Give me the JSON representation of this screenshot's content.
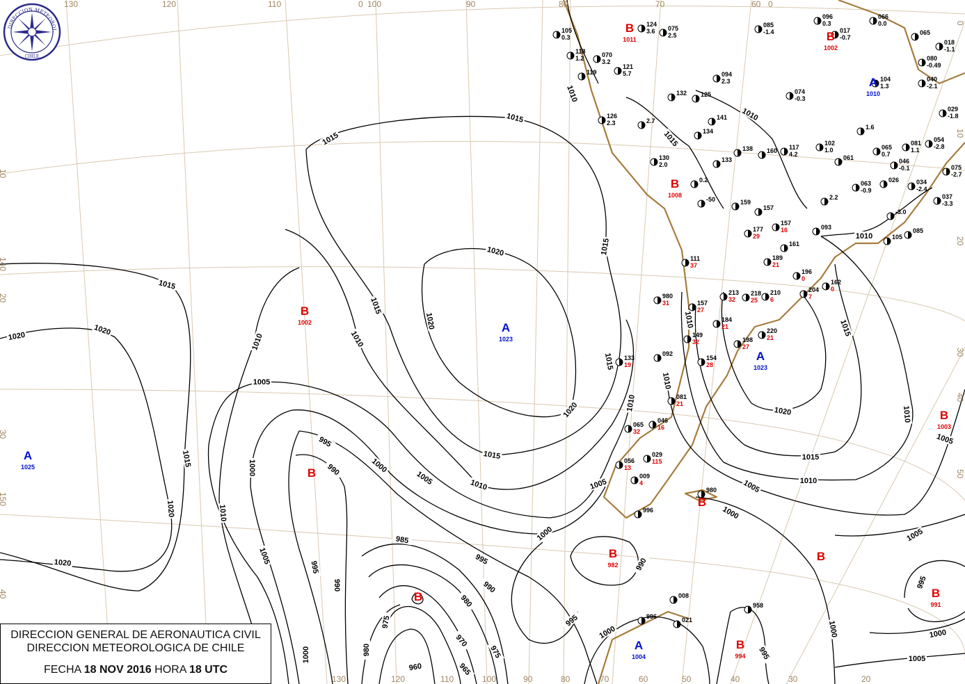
{
  "header": {
    "org_line1": "DIRECCION GENERAL DE AERONAUTICA CIVIL",
    "org_line2": "DIRECCION METEOROLOGICA DE CHILE",
    "date_label": "FECHA",
    "date_value": "18 NOV 2016",
    "time_label": "HORA",
    "time_value": "18 UTC"
  },
  "logo": {
    "text_top": "DIRECCION METEOROLOGICA",
    "text_bottom": "CHILE",
    "color": "#2a2a8a"
  },
  "colors": {
    "low": "#e00000",
    "high": "#0010d0",
    "coast": "#a67c3d",
    "grid": "#d8c8b0",
    "isobar": "#000000"
  },
  "grid_labels": {
    "top": [
      "130",
      "120",
      "110",
      "0",
      "100",
      "90",
      "80",
      "70",
      "60",
      "0"
    ],
    "left": [
      "10",
      "140",
      "20",
      "30",
      "150",
      "40"
    ],
    "bottom": [
      "130",
      "120",
      "110",
      "100",
      "90",
      "80",
      "70",
      "60",
      "50",
      "40",
      "30",
      "20"
    ],
    "right": [
      "0",
      "10",
      "20",
      "30",
      "40",
      "50"
    ]
  },
  "pressure_centers": [
    {
      "type": "B",
      "value": "1002"
    },
    {
      "type": "A",
      "value": "1023"
    },
    {
      "type": "A",
      "value": "1025"
    },
    {
      "type": "B",
      "value": ""
    },
    {
      "type": "B",
      "value": "982"
    },
    {
      "type": "B",
      "value": ""
    },
    {
      "type": "A",
      "value": "1023"
    },
    {
      "type": "B",
      "value": "1003"
    },
    {
      "type": "B",
      "value": "991"
    },
    {
      "type": "B",
      "value": "994"
    },
    {
      "type": "A",
      "value": "1004"
    },
    {
      "type": "B",
      "value": "1008"
    },
    {
      "type": "B",
      "value": "1011"
    },
    {
      "type": "B",
      "value": "1002"
    },
    {
      "type": "A",
      "value": "1010"
    },
    {
      "type": "B",
      "value": ""
    },
    {
      "type": "B",
      "value": ""
    }
  ],
  "isobar_labels": [
    "1015",
    "1015",
    "1015",
    "1015",
    "1020",
    "1020",
    "1020",
    "1015",
    "1010",
    "1010",
    "1020",
    "1020",
    "1005",
    "995",
    "990",
    "1000",
    "1005",
    "1010",
    "1015",
    "1000",
    "1015",
    "1010",
    "1020",
    "1020",
    "1005",
    "995",
    "990",
    "985",
    "995",
    "990",
    "980",
    "970",
    "975",
    "965",
    "960",
    "975",
    "980",
    "1000",
    "1000",
    "1005",
    "990",
    "995",
    "1000",
    "1010",
    "1015",
    "1010",
    "1010",
    "1020",
    "1015",
    "1010",
    "1005",
    "1000",
    "1015",
    "1010",
    "1005",
    "1005",
    "995",
    "1000",
    "1005",
    "1000",
    "995",
    "1010",
    "1015",
    "1010",
    "1010"
  ],
  "stations": [
    {
      "code": "105",
      "value": "0.3"
    },
    {
      "code": "118",
      "value": "1.2"
    },
    {
      "code": "070",
      "value": "3.2"
    },
    {
      "code": "121",
      "value": "5.7"
    },
    {
      "code": "119",
      "value": ""
    },
    {
      "code": "124",
      "value": "3.6"
    },
    {
      "code": "075",
      "value": "2.5"
    },
    {
      "code": "094",
      "value": "2.3"
    },
    {
      "code": "085",
      "value": "-1.4"
    },
    {
      "code": "096",
      "value": "0.3"
    },
    {
      "code": "017",
      "value": "-0.7"
    },
    {
      "code": "066",
      "value": "0.0"
    },
    {
      "code": "065",
      "value": ""
    },
    {
      "code": "018",
      "value": "-1.1"
    },
    {
      "code": "080",
      "value": "-0.49"
    },
    {
      "code": "040",
      "value": "-2.1"
    },
    {
      "code": "104",
      "value": "1.3"
    },
    {
      "code": "074",
      "value": "-0.3"
    },
    {
      "code": "132",
      "value": ""
    },
    {
      "code": "125",
      "value": ""
    },
    {
      "code": "141",
      "value": ""
    },
    {
      "code": "126",
      "value": "2.3"
    },
    {
      "code": "029",
      "value": "-1.8"
    },
    {
      "code": "134",
      "value": ""
    },
    {
      "code": "102",
      "value": "1.0"
    },
    {
      "code": "054",
      "value": "-2.8"
    },
    {
      "code": "081",
      "value": "1.1"
    },
    {
      "code": "065",
      "value": "0.7"
    },
    {
      "code": "117",
      "value": "4.2"
    },
    {
      "code": "138",
      "value": ""
    },
    {
      "code": "160",
      "value": ""
    },
    {
      "code": "130",
      "value": "2.0"
    },
    {
      "code": "133",
      "value": ""
    },
    {
      "code": "061",
      "value": ""
    },
    {
      "code": "046",
      "value": "-0.1"
    },
    {
      "code": "075",
      "value": "-2.7"
    },
    {
      "code": "063",
      "value": "-0.9"
    },
    {
      "code": "026",
      "value": ""
    },
    {
      "code": "034",
      "value": "-2.4"
    },
    {
      "code": "037",
      "value": "-3.3"
    },
    {
      "code": "159",
      "value": ""
    },
    {
      "code": "157",
      "value": ""
    },
    {
      "code": "157",
      "value": "16"
    },
    {
      "code": "093",
      "value": ""
    },
    {
      "code": "085",
      "value": ""
    },
    {
      "code": "105",
      "value": ""
    },
    {
      "code": "177",
      "value": "29"
    },
    {
      "code": "161",
      "value": ""
    },
    {
      "code": "189",
      "value": "21"
    },
    {
      "code": "111",
      "value": "37"
    },
    {
      "code": "196",
      "value": "0"
    },
    {
      "code": "162",
      "value": "0"
    },
    {
      "code": "210",
      "value": "6"
    },
    {
      "code": "218",
      "value": "25"
    },
    {
      "code": "213",
      "value": "32"
    },
    {
      "code": "204",
      "value": "7"
    },
    {
      "code": "157",
      "value": "27"
    },
    {
      "code": "980",
      "value": "31"
    },
    {
      "code": "184",
      "value": "21"
    },
    {
      "code": "149",
      "value": "32"
    },
    {
      "code": "220",
      "value": "21"
    },
    {
      "code": "198",
      "value": "27"
    },
    {
      "code": "154",
      "value": "28"
    },
    {
      "code": "133",
      "value": "19"
    },
    {
      "code": "092",
      "value": ""
    },
    {
      "code": "081",
      "value": "21"
    },
    {
      "code": "046",
      "value": "16"
    },
    {
      "code": "065",
      "value": "32"
    },
    {
      "code": "029",
      "value": "115"
    },
    {
      "code": "056",
      "value": "13"
    },
    {
      "code": "009",
      "value": "4"
    },
    {
      "code": "980",
      "value": ""
    },
    {
      "code": "996",
      "value": ""
    },
    {
      "code": "008",
      "value": ""
    },
    {
      "code": "958",
      "value": ""
    },
    {
      "code": "996",
      "value": ""
    },
    {
      "code": "021",
      "value": ""
    },
    {
      "code": "-50",
      "value": ""
    },
    {
      "code": "2.2",
      "value": ""
    },
    {
      "code": "1.6",
      "value": ""
    },
    {
      "code": "-3.0",
      "value": ""
    },
    {
      "code": "0.2",
      "value": ""
    },
    {
      "code": "2.7",
      "value": ""
    }
  ]
}
